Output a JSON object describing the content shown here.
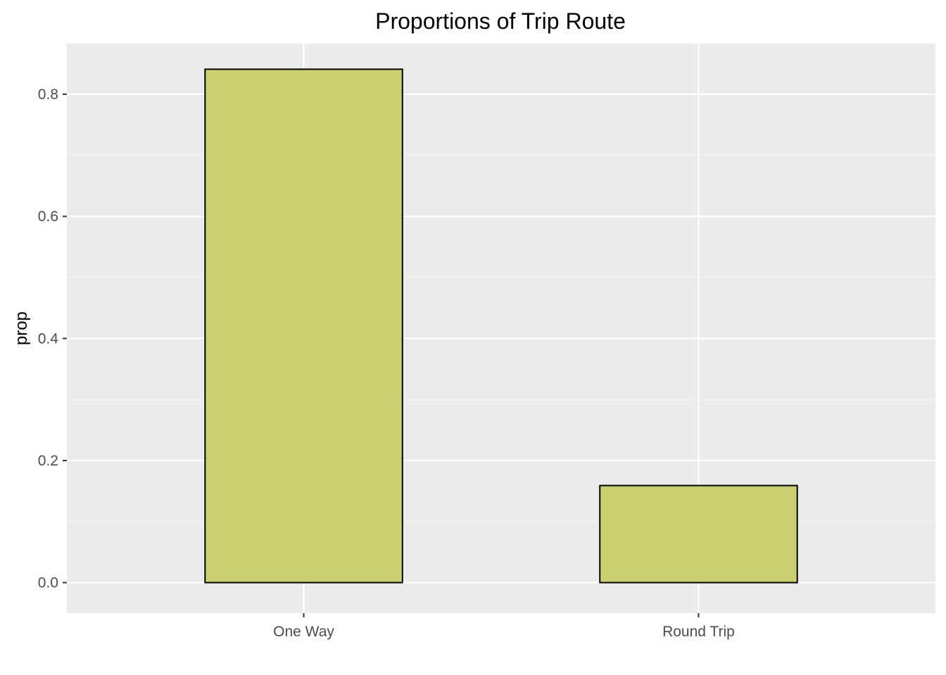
{
  "chart_data": {
    "type": "bar",
    "title": "Proportions of Trip Route",
    "xlabel": "",
    "ylabel": "prop",
    "categories": [
      "One Way",
      "Round Trip"
    ],
    "values": [
      0.841,
      0.159
    ],
    "ylim": [
      -0.05,
      0.883
    ],
    "yticks": [
      0.0,
      0.2,
      0.4,
      0.6,
      0.8
    ],
    "ytick_labels": [
      "0.0",
      "0.2",
      "0.4",
      "0.6",
      "0.8"
    ],
    "grid": true,
    "legend": "none",
    "colors": {
      "bar_fill": "#cccf6e",
      "bar_stroke": "#000000",
      "panel_background": "#ebebeb",
      "grid_major": "#ffffff",
      "grid_minor": "#f5f5f5",
      "tick_label": "#4d4d4d",
      "tick_mark": "#333333"
    }
  }
}
